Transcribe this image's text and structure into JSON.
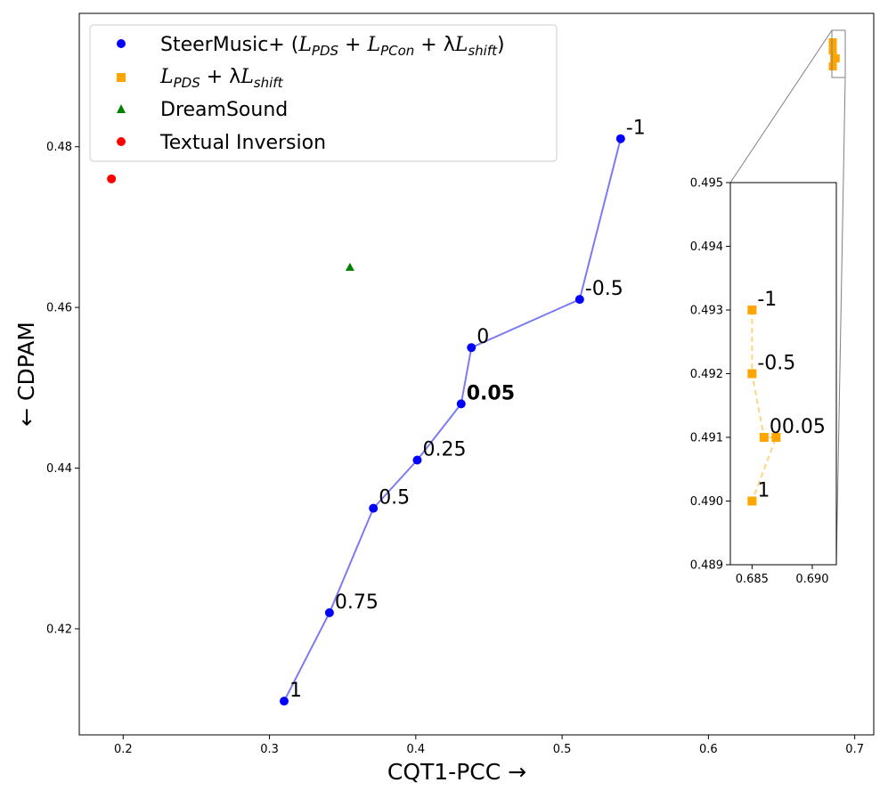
{
  "chart_data": {
    "type": "scatter",
    "xlabel": "CQT1-PCC",
    "xlabel_arrow": "→",
    "ylabel": "CDPAM",
    "ylabel_arrow": "←",
    "xlim": [
      0.17,
      0.713
    ],
    "ylim": [
      0.4068,
      0.4966
    ],
    "xticks": [
      "0.2",
      "0.3",
      "0.4",
      "0.5",
      "0.6",
      "0.7"
    ],
    "xtick_values": [
      0.2,
      0.3,
      0.4,
      0.5,
      0.6,
      0.7
    ],
    "yticks": [
      "0.42",
      "0.44",
      "0.46",
      "0.48"
    ],
    "ytick_values": [
      0.42,
      0.44,
      0.46,
      0.48
    ],
    "legend_position": "top-left",
    "legend": {
      "steer_name": "SteerMusic+ (",
      "steer_formula": [
        "L",
        "PDS",
        " + ",
        "L",
        "PCon",
        " + λ",
        "L",
        "shift",
        ")"
      ],
      "pds_formula": [
        "L",
        "PDS",
        " + λ",
        "L",
        "shift"
      ],
      "dreamsound": "DreamSound",
      "textual_inversion": "Textual Inversion"
    },
    "series": [
      {
        "name": "SteerMusic+",
        "marker": "circle",
        "color": "#0000ff",
        "line_color": "#7b7bf3",
        "points": [
          {
            "label": "1",
            "x": 0.31,
            "y": 0.411
          },
          {
            "label": "0.75",
            "x": 0.341,
            "y": 0.422
          },
          {
            "label": "0.5",
            "x": 0.371,
            "y": 0.435
          },
          {
            "label": "0.25",
            "x": 0.401,
            "y": 0.441
          },
          {
            "label": "0.05",
            "x": 0.431,
            "y": 0.448
          },
          {
            "label": "0",
            "x": 0.438,
            "y": 0.455
          },
          {
            "label": "-0.5",
            "x": 0.512,
            "y": 0.461
          },
          {
            "label": "-1",
            "x": 0.54,
            "y": 0.481
          }
        ]
      },
      {
        "name": "L_PDS + λL_shift",
        "marker": "square",
        "color": "#ffa500",
        "line_color": "#ffd580",
        "points": [
          {
            "label": "-1",
            "x": 0.685,
            "y": 0.493
          },
          {
            "label": "-0.5",
            "x": 0.685,
            "y": 0.492
          },
          {
            "label": "0",
            "x": 0.686,
            "y": 0.491
          },
          {
            "label": "0.05",
            "x": 0.687,
            "y": 0.491
          },
          {
            "label": "1",
            "x": 0.685,
            "y": 0.49
          }
        ]
      },
      {
        "name": "DreamSound",
        "marker": "triangle",
        "color": "#008000",
        "points": [
          {
            "x": 0.355,
            "y": 0.465
          }
        ]
      },
      {
        "name": "Textual Inversion",
        "marker": "circle",
        "color": "#ff0000",
        "points": [
          {
            "x": 0.192,
            "y": 0.476
          }
        ]
      }
    ],
    "highlight": {
      "label": "0.05",
      "color": "#ff0000"
    },
    "inset": {
      "xlim": [
        0.6832,
        0.692
      ],
      "ylim": [
        0.489,
        0.495
      ],
      "xticks": [
        "0.685",
        "0.690"
      ],
      "xtick_values": [
        0.685,
        0.69
      ],
      "yticks": [
        "0.489",
        "0.490",
        "0.491",
        "0.492",
        "0.493",
        "0.494",
        "0.495"
      ],
      "ytick_values": [
        0.489,
        0.49,
        0.491,
        0.492,
        0.493,
        0.494,
        0.495
      ],
      "label_overlap": "00.05"
    }
  }
}
